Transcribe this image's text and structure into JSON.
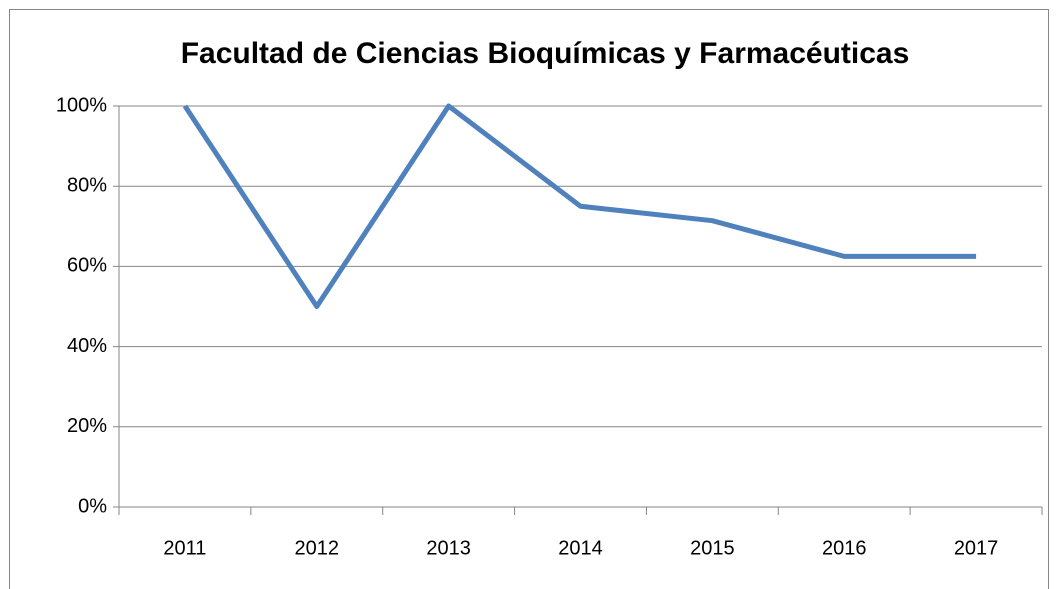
{
  "chart_data": {
    "type": "line",
    "title": "Facultad de Ciencias Bioquímicas y Farmacéuticas",
    "categories": [
      "2011",
      "2012",
      "2013",
      "2014",
      "2015",
      "2016",
      "2017"
    ],
    "series": [
      {
        "name": "Facultad de Ciencias Bioquímicas y Farmacéuticas",
        "color": "#4f81bd",
        "values": [
          100,
          50,
          100,
          75,
          71.4,
          62.5,
          62.5
        ]
      }
    ],
    "ylim": [
      0,
      100
    ],
    "yticks": [
      {
        "value": 0,
        "label": "0%"
      },
      {
        "value": 20,
        "label": "20%"
      },
      {
        "value": 40,
        "label": "40%"
      },
      {
        "value": 60,
        "label": "60%"
      },
      {
        "value": 80,
        "label": "80%"
      },
      {
        "value": 100,
        "label": "100%"
      }
    ],
    "grid": true
  }
}
